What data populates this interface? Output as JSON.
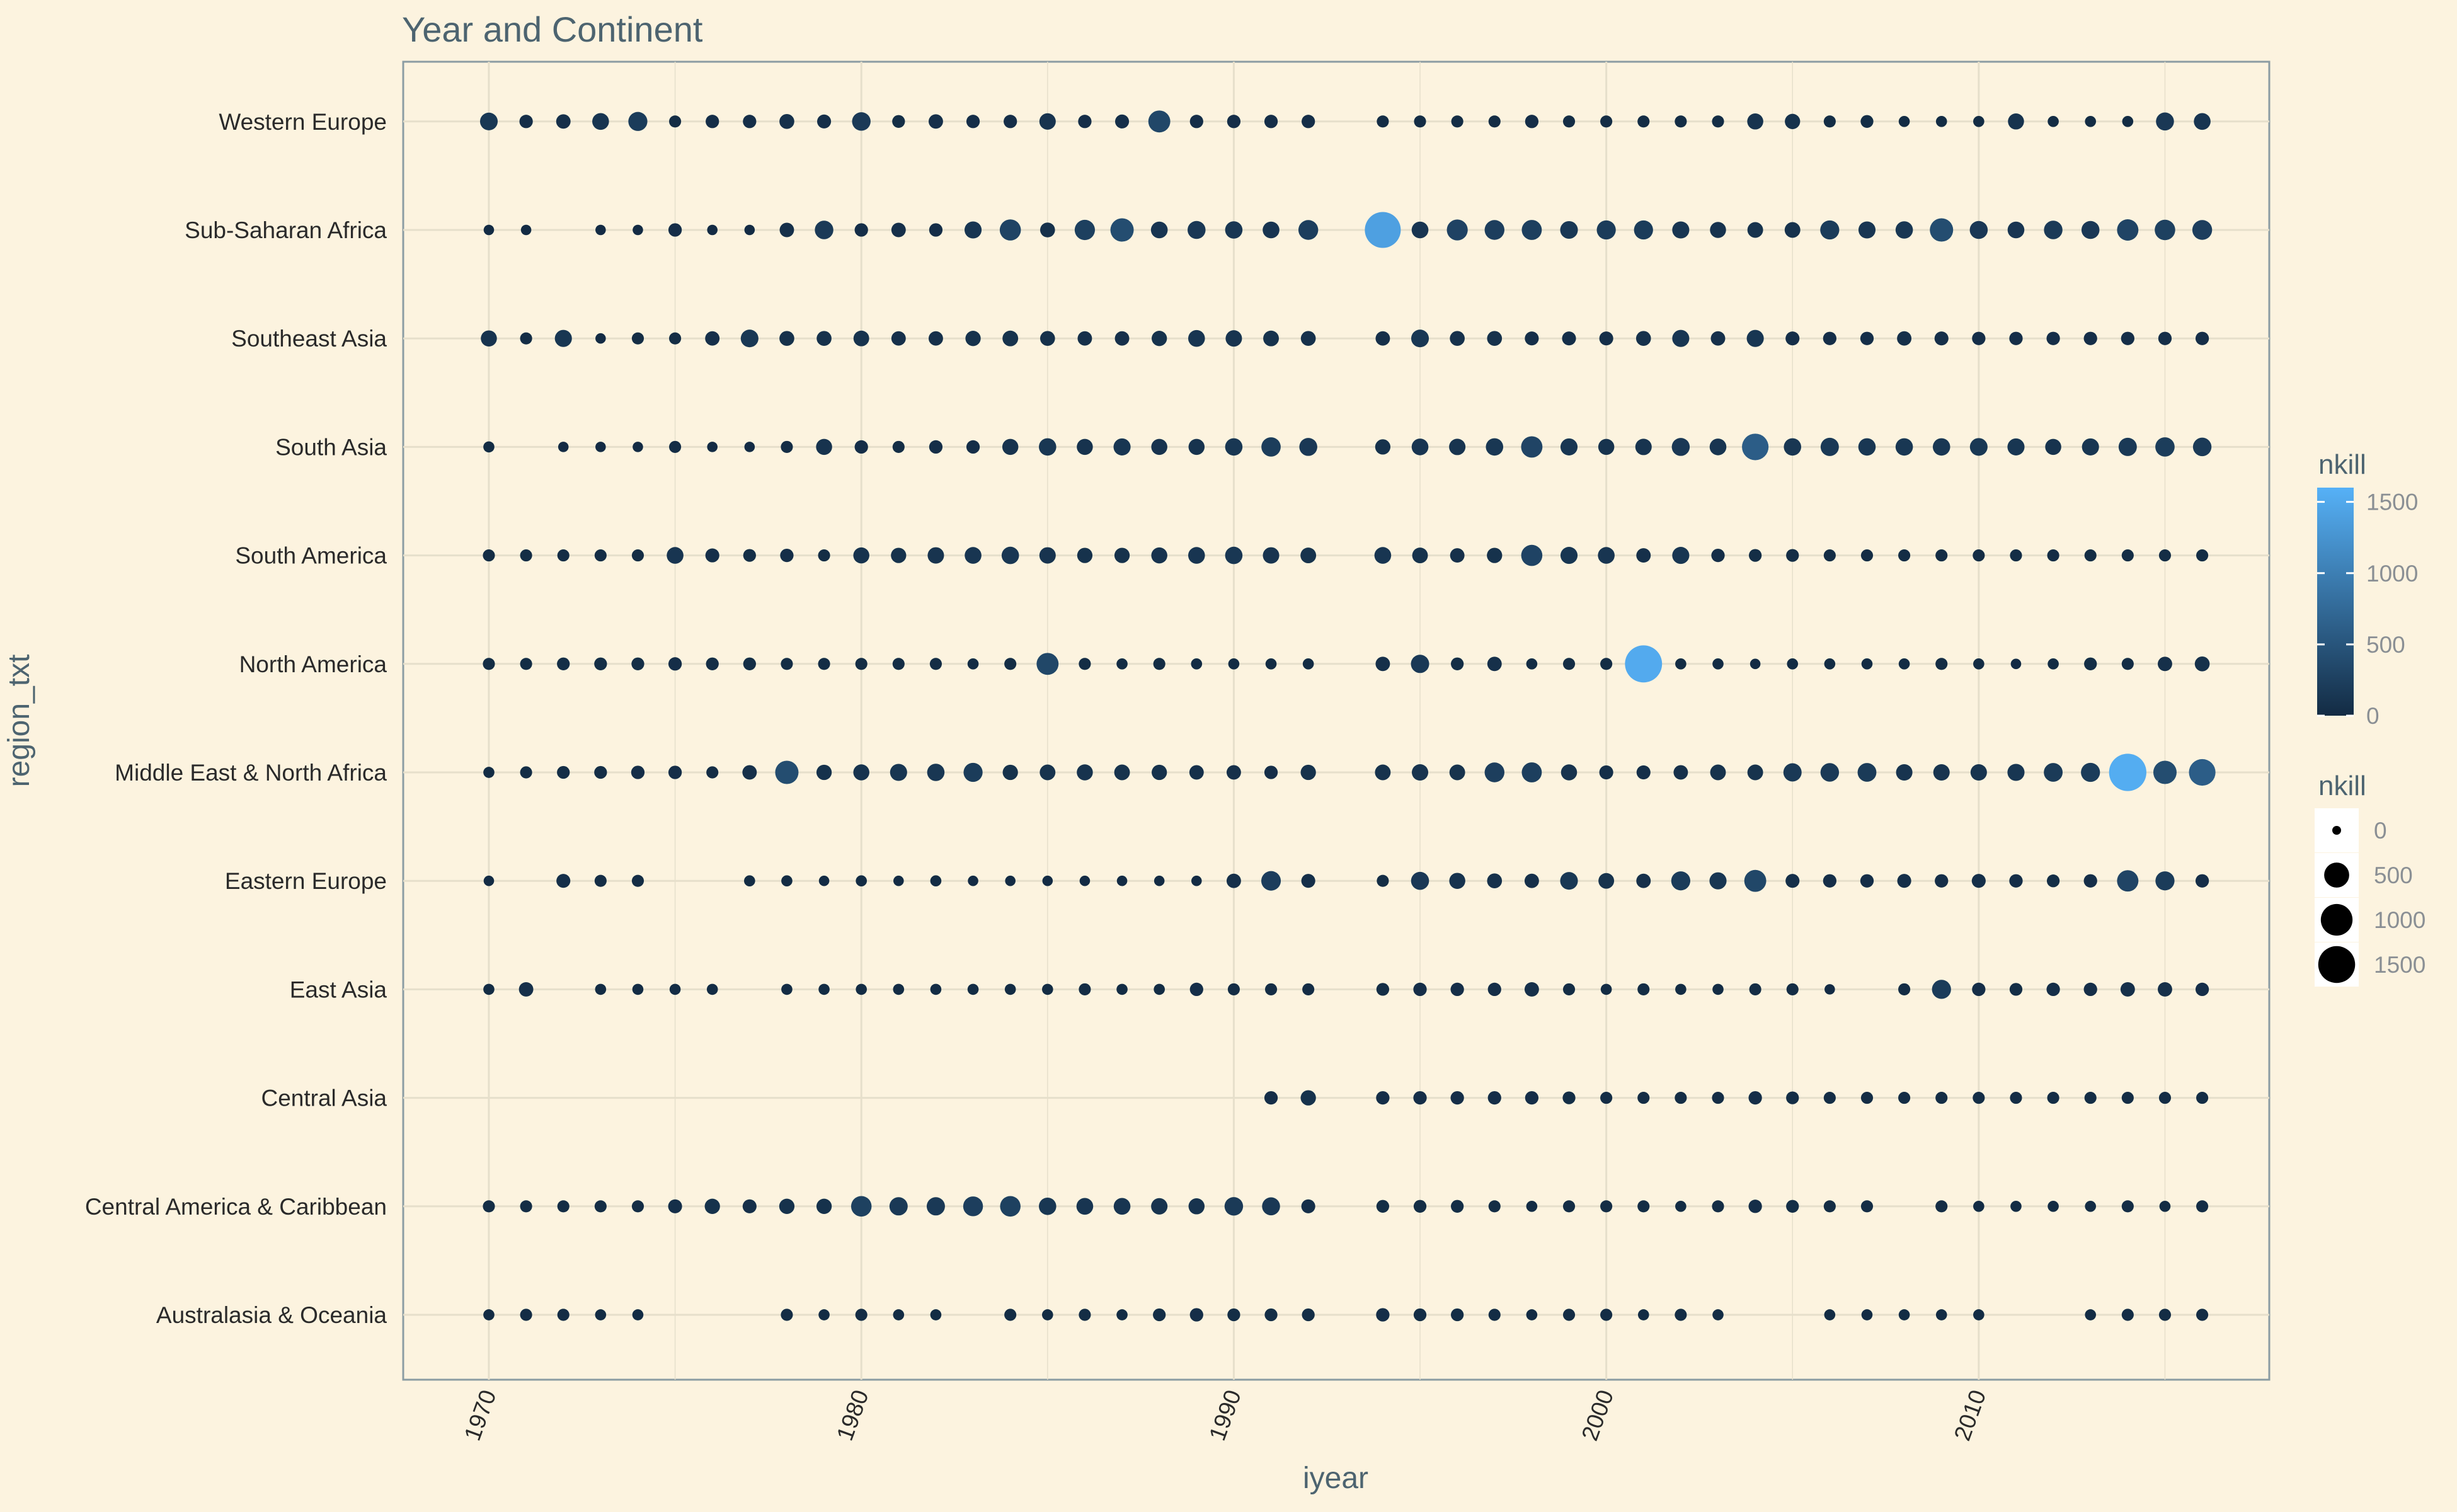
{
  "chart_data": {
    "type": "scatter",
    "title": "Year and Continent",
    "xlabel": "iyear",
    "ylabel": "region_txt",
    "xlim": [
      1967.7,
      2017.8
    ],
    "x_ticks": [
      1970,
      1980,
      1990,
      2000,
      2010
    ],
    "categories": [
      "Australasia & Oceania",
      "Central America & Caribbean",
      "Central Asia",
      "East Asia",
      "Eastern Europe",
      "Middle East & North Africa",
      "North America",
      "South America",
      "South Asia",
      "Southeast Asia",
      "Sub-Saharan Africa",
      "Western Europe"
    ],
    "size_scale": {
      "domain": [
        0,
        1600
      ],
      "min_radius_data": 0
    },
    "color_scale": {
      "low": "#132b43",
      "high": "#56b1f7",
      "domain": [
        0,
        1600
      ]
    },
    "legends": {
      "color": {
        "title": "nkill",
        "ticks": [
          0,
          500,
          1000,
          1500
        ]
      },
      "size": {
        "title": "nkill",
        "ticks": [
          0,
          500,
          1000,
          1500
        ]
      }
    },
    "grid": true,
    "legend_position": "right",
    "series": [
      {
        "category": "Western Europe",
        "years": [
          1970,
          1971,
          1972,
          1973,
          1974,
          1975,
          1976,
          1977,
          1978,
          1979,
          1980,
          1981,
          1982,
          1983,
          1984,
          1985,
          1986,
          1987,
          1988,
          1989,
          1990,
          1991,
          1992,
          1994,
          1995,
          1996,
          1997,
          1998,
          1999,
          2000,
          2001,
          2002,
          2003,
          2004,
          2005,
          2006,
          2007,
          2008,
          2009,
          2010,
          2011,
          2012,
          2013,
          2014,
          2015,
          2016
        ],
        "nkill": [
          150,
          40,
          60,
          120,
          200,
          20,
          40,
          40,
          70,
          50,
          180,
          30,
          60,
          40,
          40,
          110,
          40,
          50,
          330,
          40,
          40,
          40,
          40,
          20,
          20,
          20,
          20,
          40,
          20,
          20,
          20,
          20,
          20,
          100,
          80,
          20,
          30,
          10,
          10,
          10,
          100,
          10,
          10,
          10,
          160,
          120
        ]
      },
      {
        "category": "Sub-Saharan Africa",
        "years": [
          1970,
          1971,
          1973,
          1974,
          1975,
          1976,
          1977,
          1978,
          1979,
          1980,
          1981,
          1982,
          1983,
          1984,
          1985,
          1986,
          1987,
          1988,
          1989,
          1990,
          1991,
          1992,
          1994,
          1995,
          1996,
          1997,
          1998,
          1999,
          2000,
          2001,
          2002,
          2003,
          2004,
          2005,
          2006,
          2007,
          2008,
          2009,
          2010,
          2011,
          2012,
          2013,
          2014,
          2015,
          2016
        ],
        "nkill": [
          5,
          5,
          5,
          5,
          40,
          5,
          5,
          60,
          180,
          40,
          60,
          40,
          130,
          290,
          70,
          250,
          400,
          120,
          160,
          140,
          120,
          230,
          1400,
          120,
          280,
          230,
          240,
          150,
          200,
          200,
          130,
          100,
          90,
          90,
          200,
          130,
          140,
          400,
          160,
          120,
          180,
          160,
          300,
          260,
          230
        ]
      },
      {
        "category": "Southeast Asia",
        "years": [
          1970,
          1971,
          1972,
          1973,
          1974,
          1975,
          1976,
          1977,
          1978,
          1979,
          1980,
          1981,
          1982,
          1983,
          1984,
          1985,
          1986,
          1987,
          1988,
          1989,
          1990,
          1991,
          1992,
          1994,
          1995,
          1996,
          1997,
          1998,
          1999,
          2000,
          2001,
          2002,
          2003,
          2004,
          2005,
          2006,
          2007,
          2008,
          2009,
          2010,
          2011,
          2012,
          2013,
          2014,
          2015,
          2016
        ],
        "nkill": [
          100,
          20,
          130,
          5,
          20,
          20,
          60,
          150,
          70,
          70,
          90,
          60,
          60,
          80,
          90,
          70,
          60,
          60,
          80,
          120,
          110,
          90,
          70,
          60,
          150,
          70,
          70,
          50,
          50,
          50,
          70,
          130,
          60,
          130,
          50,
          40,
          40,
          60,
          50,
          40,
          40,
          40,
          40,
          40,
          40,
          40
        ]
      },
      {
        "category": "South Asia",
        "years": [
          1970,
          1972,
          1973,
          1974,
          1975,
          1976,
          1977,
          1978,
          1979,
          1980,
          1981,
          1982,
          1983,
          1984,
          1985,
          1986,
          1987,
          1988,
          1989,
          1990,
          1991,
          1992,
          1994,
          1995,
          1996,
          1997,
          1998,
          1999,
          2000,
          2001,
          2002,
          2003,
          2004,
          2005,
          2006,
          2007,
          2008,
          2009,
          2010,
          2011,
          2012,
          2013,
          2014,
          2015,
          2016
        ],
        "nkill": [
          10,
          5,
          5,
          5,
          20,
          5,
          5,
          20,
          100,
          40,
          20,
          40,
          40,
          100,
          140,
          100,
          130,
          100,
          100,
          140,
          210,
          160,
          80,
          120,
          110,
          140,
          300,
          130,
          100,
          110,
          160,
          120,
          600,
          140,
          170,
          140,
          140,
          140,
          150,
          130,
          100,
          130,
          170,
          210,
          180
        ]
      },
      {
        "category": "South America",
        "years": [
          1970,
          1971,
          1972,
          1973,
          1974,
          1975,
          1976,
          1977,
          1978,
          1979,
          1980,
          1981,
          1982,
          1983,
          1984,
          1985,
          1986,
          1987,
          1988,
          1989,
          1990,
          1991,
          1992,
          1994,
          1995,
          1996,
          1997,
          1998,
          1999,
          2000,
          2001,
          2002,
          2003,
          2004,
          2005,
          2006,
          2007,
          2008,
          2009,
          2010,
          2011,
          2012,
          2013,
          2014,
          2015,
          2016
        ],
        "nkill": [
          20,
          20,
          20,
          20,
          20,
          120,
          50,
          30,
          40,
          20,
          100,
          80,
          110,
          120,
          140,
          110,
          80,
          80,
          100,
          120,
          140,
          110,
          90,
          120,
          90,
          60,
          80,
          290,
          130,
          120,
          60,
          130,
          40,
          30,
          30,
          20,
          20,
          20,
          20,
          20,
          20,
          20,
          20,
          20,
          20,
          20
        ]
      },
      {
        "category": "North America",
        "years": [
          1970,
          1971,
          1972,
          1973,
          1974,
          1975,
          1976,
          1977,
          1978,
          1979,
          1980,
          1981,
          1982,
          1983,
          1984,
          1985,
          1986,
          1987,
          1988,
          1989,
          1990,
          1991,
          1992,
          1994,
          1995,
          1996,
          1997,
          1998,
          1999,
          2000,
          2001,
          2002,
          2003,
          2004,
          2005,
          2006,
          2007,
          2008,
          2009,
          2010,
          2011,
          2012,
          2013,
          2014,
          2015,
          2016
        ],
        "nkill": [
          20,
          20,
          30,
          30,
          30,
          40,
          30,
          30,
          20,
          20,
          20,
          20,
          20,
          10,
          20,
          330,
          20,
          10,
          20,
          10,
          10,
          10,
          10,
          60,
          170,
          30,
          60,
          10,
          20,
          20,
          1520,
          10,
          10,
          5,
          10,
          10,
          10,
          10,
          20,
          10,
          5,
          10,
          30,
          20,
          60,
          70
        ]
      },
      {
        "category": "Middle East & North Africa",
        "years": [
          1970,
          1971,
          1972,
          1973,
          1974,
          1975,
          1976,
          1977,
          1978,
          1979,
          1980,
          1981,
          1982,
          1983,
          1984,
          1985,
          1986,
          1987,
          1988,
          1989,
          1990,
          1991,
          1992,
          1994,
          1995,
          1996,
          1997,
          1998,
          1999,
          2000,
          2001,
          2002,
          2003,
          2004,
          2005,
          2006,
          2007,
          2008,
          2009,
          2010,
          2011,
          2012,
          2013,
          2014,
          2015,
          2016
        ],
        "nkill": [
          10,
          20,
          30,
          30,
          40,
          40,
          20,
          60,
          400,
          80,
          100,
          130,
          140,
          200,
          80,
          90,
          100,
          90,
          80,
          60,
          60,
          40,
          80,
          90,
          110,
          90,
          230,
          240,
          100,
          50,
          50,
          60,
          90,
          90,
          170,
          180,
          190,
          110,
          110,
          110,
          130,
          190,
          200,
          1550,
          400,
          600
        ]
      },
      {
        "category": "Eastern Europe",
        "years": [
          1970,
          1972,
          1973,
          1974,
          1977,
          1978,
          1979,
          1980,
          1981,
          1982,
          1983,
          1984,
          1985,
          1986,
          1987,
          1988,
          1989,
          1990,
          1991,
          1992,
          1994,
          1995,
          1996,
          1997,
          1998,
          1999,
          2000,
          2001,
          2002,
          2003,
          2004,
          2005,
          2006,
          2007,
          2008,
          2009,
          2010,
          2011,
          2012,
          2013,
          2014,
          2015,
          2016
        ],
        "nkill": [
          5,
          50,
          20,
          20,
          10,
          10,
          5,
          10,
          5,
          10,
          5,
          5,
          5,
          5,
          5,
          5,
          5,
          60,
          220,
          50,
          20,
          160,
          100,
          70,
          60,
          150,
          90,
          60,
          200,
          130,
          330,
          50,
          40,
          40,
          50,
          40,
          50,
          40,
          30,
          40,
          300,
          200,
          40
        ]
      },
      {
        "category": "East Asia",
        "years": [
          1970,
          1971,
          1973,
          1974,
          1975,
          1976,
          1978,
          1979,
          1980,
          1981,
          1982,
          1983,
          1984,
          1985,
          1986,
          1987,
          1988,
          1989,
          1990,
          1991,
          1992,
          1994,
          1995,
          1996,
          1997,
          1998,
          1999,
          2000,
          2001,
          2002,
          2003,
          2004,
          2005,
          2006,
          2008,
          2009,
          2010,
          2011,
          2012,
          2013,
          2014,
          2015,
          2016
        ],
        "nkill": [
          10,
          60,
          10,
          10,
          10,
          10,
          10,
          10,
          10,
          10,
          10,
          10,
          10,
          10,
          20,
          10,
          10,
          40,
          20,
          20,
          20,
          30,
          40,
          40,
          40,
          60,
          20,
          10,
          20,
          10,
          10,
          20,
          20,
          5,
          20,
          200,
          40,
          30,
          40,
          40,
          60,
          60,
          40
        ]
      },
      {
        "category": "Central Asia",
        "years": [
          1991,
          1992,
          1994,
          1995,
          1996,
          1997,
          1998,
          1999,
          2000,
          2001,
          2002,
          2003,
          2004,
          2005,
          2006,
          2007,
          2008,
          2009,
          2010,
          2011,
          2012,
          2013,
          2014,
          2015,
          2016
        ],
        "nkill": [
          40,
          80,
          40,
          40,
          40,
          40,
          40,
          30,
          20,
          20,
          20,
          20,
          40,
          30,
          20,
          20,
          20,
          20,
          20,
          20,
          20,
          20,
          20,
          20,
          20
        ]
      },
      {
        "category": "Central America & Caribbean",
        "years": [
          1970,
          1971,
          1972,
          1973,
          1974,
          1975,
          1976,
          1977,
          1978,
          1979,
          1980,
          1981,
          1982,
          1983,
          1984,
          1985,
          1986,
          1987,
          1988,
          1989,
          1990,
          1991,
          1992,
          1994,
          1995,
          1996,
          1997,
          1998,
          1999,
          2000,
          2001,
          2002,
          2003,
          2004,
          2005,
          2006,
          2007,
          2009,
          2010,
          2011,
          2012,
          2013,
          2014,
          2015,
          2016
        ],
        "nkill": [
          20,
          20,
          20,
          20,
          20,
          50,
          80,
          50,
          80,
          80,
          260,
          170,
          170,
          230,
          260,
          140,
          120,
          120,
          110,
          100,
          180,
          160,
          50,
          30,
          30,
          30,
          20,
          10,
          20,
          20,
          20,
          10,
          20,
          40,
          30,
          20,
          20,
          20,
          10,
          10,
          10,
          10,
          20,
          10,
          20
        ]
      },
      {
        "category": "Australasia & Oceania",
        "years": [
          1970,
          1971,
          1972,
          1973,
          1974,
          1978,
          1979,
          1980,
          1981,
          1982,
          1984,
          1985,
          1986,
          1987,
          1988,
          1989,
          1990,
          1991,
          1992,
          1994,
          1995,
          1996,
          1997,
          1998,
          1999,
          2000,
          2001,
          2002,
          2003,
          2006,
          2007,
          2008,
          2009,
          2010,
          2013,
          2014,
          2015,
          2016
        ],
        "nkill": [
          10,
          20,
          20,
          10,
          10,
          20,
          10,
          20,
          10,
          10,
          20,
          10,
          20,
          10,
          30,
          40,
          30,
          30,
          30,
          40,
          30,
          30,
          20,
          10,
          20,
          20,
          10,
          20,
          10,
          10,
          10,
          10,
          10,
          10,
          10,
          20,
          20,
          20
        ]
      }
    ]
  }
}
